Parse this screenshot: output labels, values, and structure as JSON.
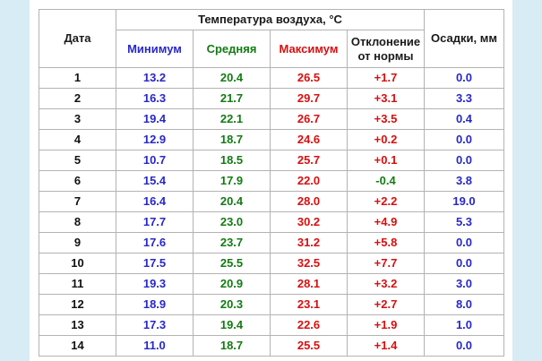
{
  "table": {
    "headers": {
      "date": "Дата",
      "temperature_group": "Температура воздуха, °C",
      "min": "Минимум",
      "avg": "Средняя",
      "max": "Максимум",
      "deviation": "Отклонение от нормы",
      "precipitation": "Осадки, мм"
    },
    "rows": [
      {
        "day": "1",
        "min": "13.2",
        "avg": "20.4",
        "max": "26.5",
        "dev": "+1.7",
        "precip": "0.0"
      },
      {
        "day": "2",
        "min": "16.3",
        "avg": "21.7",
        "max": "29.7",
        "dev": "+3.1",
        "precip": "3.3"
      },
      {
        "day": "3",
        "min": "19.4",
        "avg": "22.1",
        "max": "26.7",
        "dev": "+3.5",
        "precip": "0.4"
      },
      {
        "day": "4",
        "min": "12.9",
        "avg": "18.7",
        "max": "24.6",
        "dev": "+0.2",
        "precip": "0.0"
      },
      {
        "day": "5",
        "min": "10.7",
        "avg": "18.5",
        "max": "25.7",
        "dev": "+0.1",
        "precip": "0.0"
      },
      {
        "day": "6",
        "min": "15.4",
        "avg": "17.9",
        "max": "22.0",
        "dev": "-0.4",
        "precip": "3.8"
      },
      {
        "day": "7",
        "min": "16.4",
        "avg": "20.4",
        "max": "28.0",
        "dev": "+2.2",
        "precip": "19.0"
      },
      {
        "day": "8",
        "min": "17.7",
        "avg": "23.0",
        "max": "30.2",
        "dev": "+4.9",
        "precip": "5.3"
      },
      {
        "day": "9",
        "min": "17.6",
        "avg": "23.7",
        "max": "31.2",
        "dev": "+5.8",
        "precip": "0.0"
      },
      {
        "day": "10",
        "min": "17.5",
        "avg": "25.5",
        "max": "32.5",
        "dev": "+7.7",
        "precip": "0.0"
      },
      {
        "day": "11",
        "min": "19.3",
        "avg": "20.9",
        "max": "28.1",
        "dev": "+3.2",
        "precip": "3.0"
      },
      {
        "day": "12",
        "min": "18.9",
        "avg": "20.3",
        "max": "23.1",
        "dev": "+2.7",
        "precip": "8.0"
      },
      {
        "day": "13",
        "min": "17.3",
        "avg": "19.4",
        "max": "22.6",
        "dev": "+1.9",
        "precip": "1.0"
      },
      {
        "day": "14",
        "min": "11.0",
        "avg": "18.7",
        "max": "25.5",
        "dev": "+1.4",
        "precip": "0.0"
      }
    ]
  },
  "colors": {
    "min": "#2828c8",
    "avg": "#137b13",
    "max": "#d80f0f",
    "background": "#d7ecf5"
  }
}
